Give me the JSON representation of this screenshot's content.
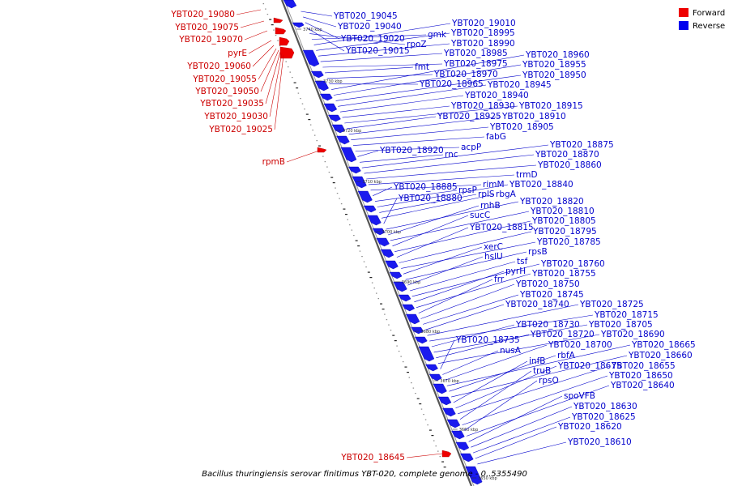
{
  "legend": {
    "forward": "Forward",
    "reverse": "Reverse",
    "forward_color": "#ee0000",
    "reverse_color": "#0000ee"
  },
  "caption": "Bacillus thuringiensis serovar finitimus YBT-020, complete genome - 0..5355490",
  "ticks": [
    "3740 kbp",
    "3730 kbp",
    "3720 kbp",
    "3710 kbp",
    "3700 kbp",
    "3690 kbp",
    "3680 kbp",
    "3670 kbp",
    "3660 kbp",
    "3650 kbp"
  ],
  "labels_forward": [
    "YBT020_19080",
    "YBT020_19075",
    "YBT020_19070",
    "pyrE",
    "YBT020_19060",
    "YBT020_19055",
    "YBT020_19050",
    "YBT020_19035",
    "YBT020_19030",
    "YBT020_19025",
    "rpmB",
    "YBT020_18645"
  ],
  "labels_reverse": [
    "YBT020_19045",
    "YBT020_19040",
    "YBT020_19020",
    "YBT020_19015",
    "rpoZ",
    "gmk",
    "YBT020_19010",
    "YBT020_18995",
    "YBT020_18990",
    "YBT020_18985",
    "YBT020_18975",
    "fmt",
    "YBT020_18970",
    "YBT020_18965",
    "YBT020_18960",
    "YBT020_18955",
    "YBT020_18950",
    "YBT020_18945",
    "YBT020_18940",
    "YBT020_18930",
    "YBT020_18915",
    "YBT020_18925",
    "YBT020_18910",
    "YBT020_18905",
    "fabG",
    "acpP",
    "YBT020_18920",
    "rnc",
    "YBT020_18875",
    "YBT020_18870",
    "YBT020_18860",
    "trmD",
    "rimM",
    "YBT020_18885",
    "rpsP",
    "YBT020_18840",
    "rplS",
    "rbgA",
    "YBT020_18880",
    "YBT020_18820",
    "rnhB",
    "YBT020_18810",
    "sucC",
    "YBT020_18805",
    "YBT020_18815",
    "YBT020_18795",
    "YBT020_18785",
    "xerC",
    "rpsB",
    "hslU",
    "tsf",
    "YBT020_18760",
    "pyrH",
    "YBT020_18755",
    "frr",
    "YBT020_18750",
    "YBT020_18745",
    "YBT020_18740",
    "YBT020_18725",
    "YBT020_18715",
    "YBT020_18730",
    "YBT020_18705",
    "YBT020_18720",
    "YBT020_18690",
    "YBT020_18735",
    "nusA",
    "YBT020_18700",
    "YBT020_18665",
    "rbfA",
    "YBT020_18660",
    "infB",
    "YBT020_18675",
    "YBT020_18655",
    "truB",
    "YBT020_18650",
    "rpsO",
    "YBT020_18640",
    "spoVFB",
    "YBT020_18630",
    "YBT020_18625",
    "YBT020_18620",
    "YBT020_18610"
  ]
}
